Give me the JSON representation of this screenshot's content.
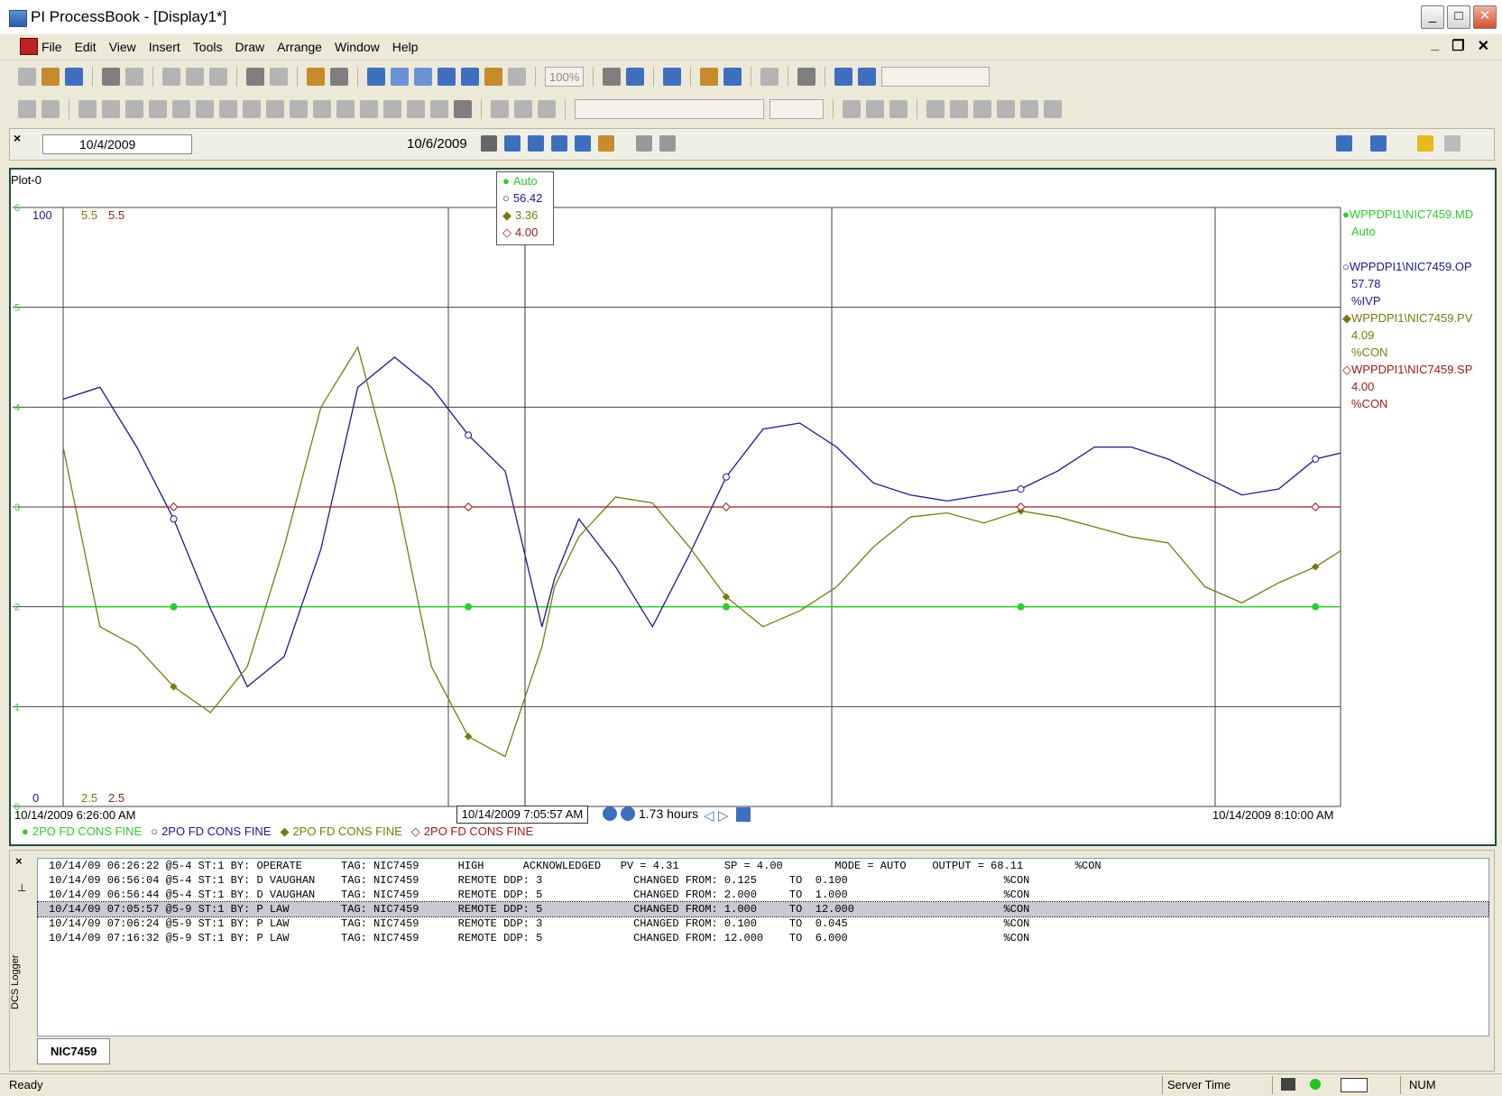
{
  "window": {
    "title": "PI ProcessBook - [Display1*]"
  },
  "menu": [
    "File",
    "Edit",
    "View",
    "Insert",
    "Tools",
    "Draw",
    "Arrange",
    "Window",
    "Help"
  ],
  "toolbar": {
    "zoom": "100%"
  },
  "timebar": {
    "start": "10/4/2009",
    "end": "10/6/2009"
  },
  "plot": {
    "name": "Plot-0",
    "cursor_readout": [
      {
        "marker": "●",
        "text": "Auto",
        "color": "#2ecc2e"
      },
      {
        "marker": "○",
        "text": "56.42",
        "color": "#1a1a8c"
      },
      {
        "marker": "◆",
        "text": "3.36",
        "color": "#7a7a10"
      },
      {
        "marker": "◇",
        "text": "4.00",
        "color": "#9a1a1a"
      }
    ],
    "right_legend": [
      {
        "tag": "WPPDPI1\\NIC7459.MD",
        "value": "Auto",
        "unit": "",
        "color": "#2ecc2e",
        "marker": "●"
      },
      {
        "tag": "WPPDPI1\\NIC7459.OP",
        "value": "57.78",
        "unit": "%IVP",
        "color": "#1a1a8c",
        "marker": "○"
      },
      {
        "tag": "WPPDPI1\\NIC7459.PV",
        "value": "4.09",
        "unit": "%CON",
        "color": "#7a7a10",
        "marker": "◆"
      },
      {
        "tag": "WPPDPI1\\NIC7459.SP",
        "value": "4.00",
        "unit": "%CON",
        "color": "#9a1a1a",
        "marker": "◇"
      }
    ],
    "bottom_legend": [
      {
        "marker": "●",
        "text": "2PO FD CONS FINE",
        "color": "#2ecc2e"
      },
      {
        "marker": "○",
        "text": "2PO FD CONS FINE",
        "color": "#1a1a8c"
      },
      {
        "marker": "◆",
        "text": "2PO FD CONS FINE",
        "color": "#7a7a10"
      },
      {
        "marker": "◇",
        "text": "2PO FD CONS FINE",
        "color": "#9a1a1a"
      }
    ],
    "start_time": "10/14/2009 6:26:00 AM",
    "end_time": "10/14/2009 8:10:00 AM",
    "cursor_time": "10/14/2009 7:05:57 AM",
    "span": "1.73 hours"
  },
  "chart_data": {
    "type": "line",
    "x": [
      6.433,
      6.483,
      6.533,
      6.583,
      6.633,
      6.683,
      6.733,
      6.783,
      6.833,
      6.883,
      6.933,
      6.983,
      7.033,
      7.083,
      7.1,
      7.133,
      7.183,
      7.233,
      7.283,
      7.333,
      7.383,
      7.433,
      7.483,
      7.533,
      7.583,
      7.633,
      7.683,
      7.733,
      7.783,
      7.833,
      7.883,
      7.933,
      7.983,
      8.033,
      8.083,
      8.133,
      8.167
    ],
    "y_left_ticks": [
      "0",
      "1",
      "2",
      "3",
      "4",
      "5",
      "6"
    ],
    "y_axis_labels": {
      "md": [
        "0",
        "6"
      ],
      "op": [
        "0",
        "100"
      ],
      "pv": [
        "2.5",
        "5.5"
      ],
      "sp": [
        "2.5",
        "5.5"
      ]
    },
    "series": [
      {
        "name": "2PO FD CONS FINE",
        "tag": "WPPDPI1\\NIC7459.MD",
        "color": "#2ecc2e",
        "values": [
          2,
          2,
          2,
          2,
          2,
          2,
          2,
          2,
          2,
          2,
          2,
          2,
          2,
          2,
          2,
          2,
          2,
          2,
          2,
          2,
          2,
          2,
          2,
          2,
          2,
          2,
          2,
          2,
          2,
          2,
          2,
          2,
          2,
          2,
          2,
          2,
          2
        ]
      },
      {
        "name": "2PO FD CONS FINE",
        "tag": "WPPDPI1\\NIC7459.OP",
        "color": "#1a1a8c",
        "values": [
          68,
          70,
          60,
          48,
          33,
          20,
          25,
          43,
          70,
          75,
          70,
          62,
          56,
          30,
          38,
          48,
          40,
          30,
          42,
          55,
          63,
          64,
          60,
          54,
          52,
          51,
          52,
          53,
          56,
          60,
          60,
          58,
          55,
          52,
          53,
          58,
          59
        ]
      },
      {
        "name": "2PO FD CONS FINE",
        "tag": "WPPDPI1\\NIC7459.PV",
        "color": "#7a7a10",
        "values": [
          4.3,
          3.4,
          3.3,
          3.1,
          2.97,
          3.2,
          3.8,
          4.5,
          4.8,
          4.1,
          3.2,
          2.85,
          2.75,
          3.3,
          3.6,
          3.85,
          4.05,
          4.02,
          3.8,
          3.55,
          3.4,
          3.48,
          3.6,
          3.8,
          3.95,
          3.97,
          3.92,
          3.98,
          3.95,
          3.9,
          3.85,
          3.82,
          3.6,
          3.52,
          3.62,
          3.7,
          3.78
        ]
      },
      {
        "name": "2PO FD CONS FINE",
        "tag": "WPPDPI1\\NIC7459.SP",
        "color": "#9a1a1a",
        "values": [
          4,
          4,
          4,
          4,
          4,
          4,
          4,
          4,
          4,
          4,
          4,
          4,
          4,
          4,
          4,
          4,
          4,
          4,
          4,
          4,
          4,
          4,
          4,
          4,
          4,
          4,
          4,
          4,
          4,
          4,
          4,
          4,
          4,
          4,
          4,
          4,
          4
        ]
      }
    ]
  },
  "logger": {
    "tab": "NIC7459",
    "side_label": "DCS Logger",
    "rows": [
      "10/14/09 06:26:22 @5-4 ST:1 BY: OPERATE      TAG: NIC7459      HIGH      ACKNOWLEDGED   PV = 4.31       SP = 4.00        MODE = AUTO    OUTPUT = 68.11        %CON",
      "10/14/09 06:56:04 @5-4 ST:1 BY: D VAUGHAN    TAG: NIC7459      REMOTE DDP: 3              CHANGED FROM: 0.125     TO  0.100                        %CON",
      "10/14/09 06:56:44 @5-4 ST:1 BY: D VAUGHAN    TAG: NIC7459      REMOTE DDP: 5              CHANGED FROM: 2.000     TO  1.000                        %CON",
      "10/14/09 07:05:57 @5-9 ST:1 BY: P LAW        TAG: NIC7459      REMOTE DDP: 5              CHANGED FROM: 1.000     TO  12.000                       %CON",
      "10/14/09 07:06:24 @5-9 ST:1 BY: P LAW        TAG: NIC7459      REMOTE DDP: 3              CHANGED FROM: 0.100     TO  0.045                        %CON",
      "10/14/09 07:16:32 @5-9 ST:1 BY: P LAW        TAG: NIC7459      REMOTE DDP: 5              CHANGED FROM: 12.000    TO  6.000                        %CON"
    ],
    "selected_index": 3
  },
  "status": {
    "ready": "Ready",
    "server_time": "Server Time",
    "num": "NUM"
  }
}
